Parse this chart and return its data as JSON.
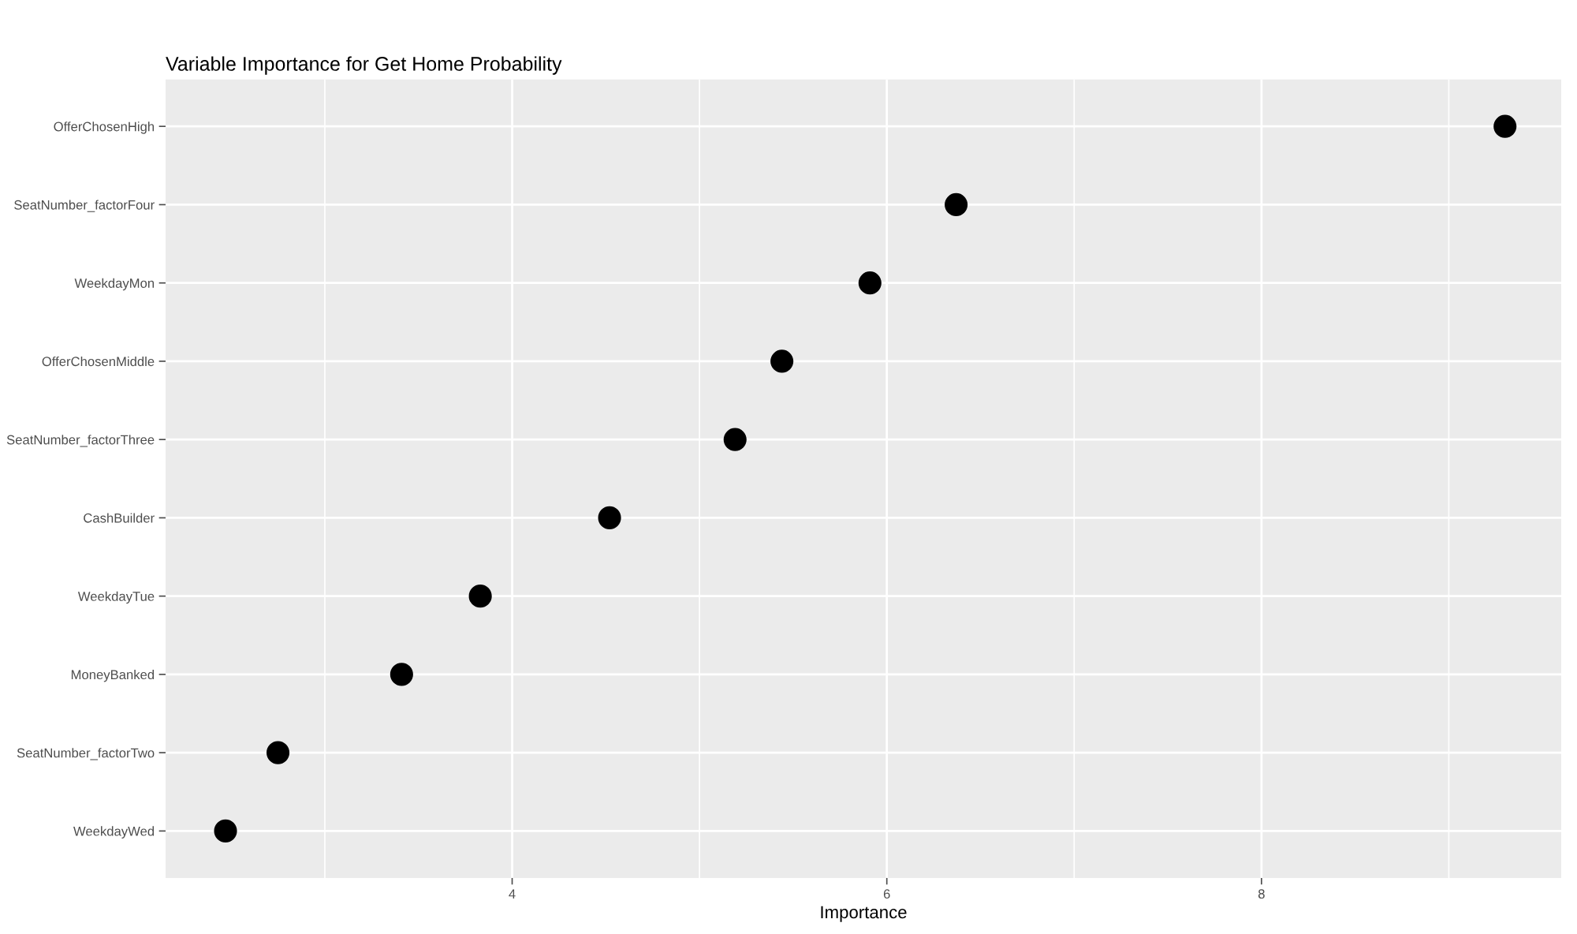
{
  "chart_data": {
    "type": "scatter",
    "orientation": "horizontal",
    "title": "Variable Importance for Get Home Probability",
    "xlabel": "Importance",
    "categories": [
      "OfferChosenHigh",
      "SeatNumber_factorFour",
      "WeekdayMon",
      "OfferChosenMiddle",
      "SeatNumber_factorThree",
      "CashBuilder",
      "WeekdayTue",
      "MoneyBanked",
      "SeatNumber_factorTwo",
      "WeekdayWed"
    ],
    "values": [
      9.3,
      6.37,
      5.91,
      5.44,
      5.19,
      4.52,
      3.83,
      3.41,
      2.75,
      2.47
    ],
    "color": "#000000",
    "marker": "circle",
    "xlim": [
      2.15,
      9.6
    ],
    "xticks": [
      4,
      6,
      8
    ],
    "grid": true
  }
}
